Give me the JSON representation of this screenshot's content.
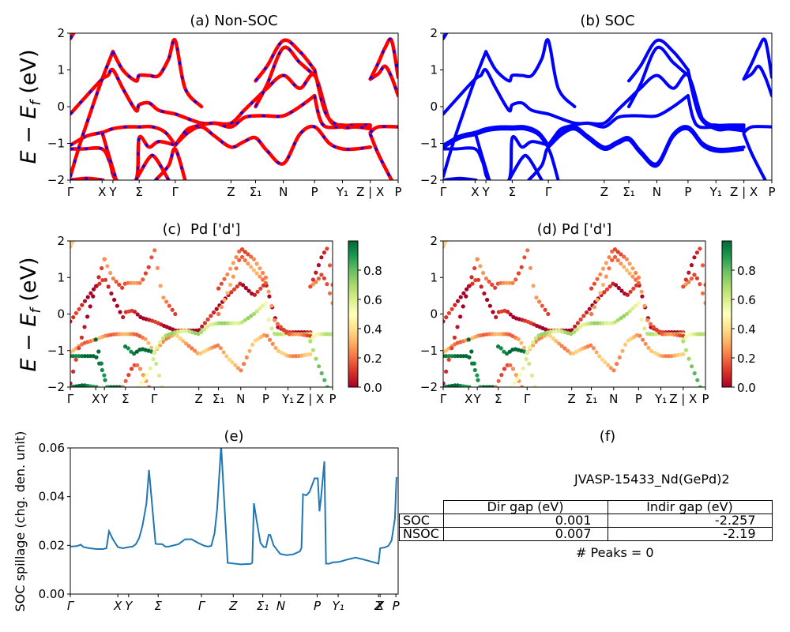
{
  "figure": {
    "material_label": "JVASP-15433_Nd(GePd)2",
    "peaks_text": "# Peaks = 0"
  },
  "colors": {
    "nonsoc_line": "#ff0000",
    "nonsoc_dash": "#0000ff",
    "soc_line": "#0000ff",
    "spillage_line": "#1f77b4",
    "colormap": "RdYlGn"
  },
  "chart_data": [
    {
      "id": "a",
      "type": "line",
      "title": "(a) Non-SOC",
      "ylabel": "E − E_f (eV)",
      "ylim": [
        -2,
        2
      ],
      "yticks": [
        "−2",
        "−1",
        "0",
        "1",
        "2"
      ],
      "ytick_values": [
        -2,
        -1,
        0,
        1,
        2
      ],
      "xticks": [
        "Γ",
        "X",
        "Y",
        "Σ",
        "Γ",
        "Z",
        "Σ₁",
        "N",
        "P",
        "Y₁",
        "Z | X",
        "P"
      ],
      "xtick_positions": [
        0,
        0.097,
        0.13,
        0.21,
        0.32,
        0.49,
        0.565,
        0.65,
        0.745,
        0.83,
        0.915,
        1.0
      ],
      "style": "red line overlaid with blue dashes",
      "bands": [
        {
          "x": [
            0,
            0.05,
            0.097,
            0.115,
            0.13,
            0.16,
            0.2,
            0.21,
            0.24,
            0.27,
            0.32,
            0.35,
            0.4,
            0.44,
            0.49,
            0.53,
            0.565,
            0.6,
            0.65,
            0.7,
            0.745,
            0.79,
            0.83,
            0.87,
            0.915
          ],
          "y": [
            -0.2,
            0.3,
            0.75,
            0.85,
            1.0,
            0.5,
            -0.1,
            0.05,
            0.1,
            -0.1,
            -0.2,
            -0.3,
            -0.45,
            -0.45,
            -0.45,
            -0.1,
            0.2,
            0.5,
            0.85,
            0.5,
            0.85,
            -0.35,
            -0.5,
            -0.5,
            -0.5
          ]
        },
        {
          "x": [
            0,
            0.05,
            0.097,
            0.13,
            0.17,
            0.21,
            0.25,
            0.29,
            0.32
          ],
          "y": [
            -1.05,
            -0.8,
            -0.7,
            -0.6,
            -0.55,
            -0.55,
            -0.55,
            -0.7,
            -1.05
          ]
        },
        {
          "x": [
            0.32,
            0.36,
            0.4,
            0.44,
            0.49,
            0.53,
            0.565,
            0.6,
            0.65,
            0.7,
            0.745,
            0.79,
            0.83,
            0.87,
            0.915
          ],
          "y": [
            -1.05,
            -0.7,
            -0.55,
            -0.8,
            -1.1,
            -0.95,
            -0.85,
            -1.2,
            -1.55,
            -0.75,
            -0.55,
            -1.0,
            -1.15,
            -1.15,
            -1.1
          ]
        },
        {
          "x": [
            0,
            0.04,
            0.097,
            0.12,
            0.14,
            0.2,
            0.21,
            0.24,
            0.27,
            0.32
          ],
          "y": [
            -1.15,
            -1.15,
            -1.15,
            -1.5,
            -2.0,
            -2.0,
            -0.85,
            -1.1,
            -0.95,
            -1.05
          ]
        },
        {
          "x": [
            0.32,
            0.34,
            0.36,
            0.4,
            0.44,
            0.49,
            0.53,
            0.565,
            0.6,
            0.65,
            0.7,
            0.745
          ],
          "y": [
            -1.05,
            -0.8,
            -0.6,
            -0.5,
            -0.45,
            -0.55,
            -0.3,
            -0.25,
            -0.25,
            -0.25,
            0.0,
            0.3
          ]
        },
        {
          "x": [
            0.745,
            0.76,
            0.78,
            0.83,
            0.87,
            0.915
          ],
          "y": [
            0.3,
            -0.3,
            -0.55,
            -0.55,
            -0.55,
            -0.55
          ]
        },
        {
          "x": [
            0,
            0.03,
            0.06,
            0.097,
            0.13
          ],
          "y": [
            -1.9,
            -1.0,
            -0.2,
            0.75,
            1.5
          ]
        },
        {
          "x": [
            0.13,
            0.16,
            0.2,
            0.21,
            0.24,
            0.27,
            0.3,
            0.32,
            0.35,
            0.4
          ],
          "y": [
            1.5,
            1.0,
            0.7,
            0.85,
            0.85,
            0.85,
            1.3,
            1.8,
            0.5,
            0.0
          ]
        },
        {
          "x": [
            0.097,
            0.12,
            0.14
          ],
          "y": [
            -0.7,
            -1.4,
            -2.0
          ]
        },
        {
          "x": [
            0.2,
            0.24,
            0.26,
            0.3
          ],
          "y": [
            -2.0,
            -1.4,
            -1.4,
            -2.0
          ]
        },
        {
          "x": [
            0.26,
            0.3,
            0.32,
            0.35
          ],
          "y": [
            -2.0,
            -1.6,
            -1.15,
            -2.0
          ]
        },
        {
          "x": [
            0.565,
            0.6,
            0.65,
            0.7,
            0.745
          ],
          "y": [
            0.7,
            1.1,
            1.8,
            1.5,
            1.0
          ]
        },
        {
          "x": [
            0.565,
            0.6,
            0.65,
            0.7,
            0.745
          ],
          "y": [
            0.0,
            0.6,
            1.6,
            1.2,
            0.85
          ]
        },
        {
          "x": [
            0.745,
            0.78,
            0.83,
            0.87,
            0.915
          ],
          "y": [
            1.0,
            -0.2,
            -0.55,
            -0.55,
            -0.6
          ]
        },
        {
          "x": [
            0.915,
            0.94,
            0.96,
            0.98,
            1.0
          ],
          "y": [
            0.75,
            0.9,
            1.1,
            0.8,
            0.3
          ]
        },
        {
          "x": [
            0.915,
            0.94,
            0.96,
            0.98,
            1.0
          ],
          "y": [
            0.75,
            1.2,
            1.6,
            1.8,
            0.8
          ]
        },
        {
          "x": [
            0.915,
            0.94,
            1.0
          ],
          "y": [
            -0.7,
            -0.55,
            -0.55
          ]
        },
        {
          "x": [
            0.915,
            0.94,
            0.98
          ],
          "y": [
            -0.75,
            -1.3,
            -2.0
          ]
        },
        {
          "x": [
            0,
            0.05,
            0.1
          ],
          "y": [
            -2.0,
            -1.95,
            -2.0
          ]
        },
        {
          "x": [
            0,
            0.01
          ],
          "y": [
            1.85,
            2.0
          ]
        }
      ]
    },
    {
      "id": "b",
      "type": "line",
      "title": "(b) SOC",
      "ylim": [
        -2,
        2
      ],
      "yticks": [
        "−2",
        "−1",
        "0",
        "1",
        "2"
      ],
      "ytick_values": [
        -2,
        -1,
        0,
        1,
        2
      ],
      "xticks": [
        "Γ",
        "X",
        "Y",
        "Σ",
        "Γ",
        "Z",
        "Σ₁",
        "N",
        "P",
        "Y₁",
        "Z | X",
        "P"
      ],
      "xtick_positions": [
        0,
        0.097,
        0.13,
        0.21,
        0.32,
        0.49,
        0.565,
        0.65,
        0.745,
        0.83,
        0.915,
        1.0
      ],
      "style": "solid blue lines (same band structure as panel a, split by SOC)"
    },
    {
      "id": "c",
      "type": "scatter",
      "title": "(c)  Pd ['d']",
      "ylabel": "E − E_f (eV)",
      "ylim": [
        -2,
        2
      ],
      "yticks": [
        "−2",
        "−1",
        "0",
        "1",
        "2"
      ],
      "ytick_values": [
        -2,
        -1,
        0,
        1,
        2
      ],
      "xticks": [
        "Γ",
        "X",
        "Y",
        "Σ",
        "Γ",
        "Z",
        "Σ₁",
        "N",
        "P",
        "Y₁",
        "Z | X",
        "P"
      ],
      "xtick_positions": [
        0,
        0.097,
        0.13,
        0.21,
        0.32,
        0.49,
        0.565,
        0.65,
        0.745,
        0.83,
        0.915,
        1.0
      ],
      "colorbar": {
        "min": 0.0,
        "max": 1.0,
        "ticks": [
          "0.0",
          "0.2",
          "0.4",
          "0.6",
          "0.8"
        ],
        "tick_values": [
          0,
          0.2,
          0.4,
          0.6,
          0.8
        ],
        "colormap": "RdYlGn"
      },
      "weight_by_band": [
        0.05,
        0.25,
        0.3,
        1.0,
        0.65,
        0.6,
        0.05,
        0.2,
        0.95,
        0.2,
        0.55,
        0.2,
        0.25,
        0.2,
        0.2,
        0.1,
        0.6,
        0.75,
        0.95,
        0.3
      ]
    },
    {
      "id": "d",
      "type": "scatter",
      "title": "(d) Pd ['d']",
      "ylim": [
        -2,
        2
      ],
      "yticks": [
        "−2",
        "−1",
        "0",
        "1",
        "2"
      ],
      "ytick_values": [
        -2,
        -1,
        0,
        1,
        2
      ],
      "xticks": [
        "Γ",
        "X",
        "Y",
        "Σ",
        "Γ",
        "Z",
        "Σ₁",
        "N",
        "P",
        "Y₁",
        "Z | X",
        "P"
      ],
      "xtick_positions": [
        0,
        0.097,
        0.13,
        0.21,
        0.32,
        0.49,
        0.565,
        0.65,
        0.745,
        0.83,
        0.915,
        1.0
      ],
      "colorbar": {
        "min": 0.0,
        "max": 1.0,
        "ticks": [
          "0.0",
          "0.2",
          "0.4",
          "0.6",
          "0.8"
        ],
        "tick_values": [
          0,
          0.2,
          0.4,
          0.6,
          0.8
        ],
        "colormap": "RdYlGn"
      }
    },
    {
      "id": "e",
      "type": "line",
      "title": "(e)",
      "ylabel": "SOC spillage (chg. den. unit)",
      "ylim": [
        0,
        0.06
      ],
      "yticks": [
        "0.00",
        "0.02",
        "0.04",
        "0.06"
      ],
      "ytick_values": [
        0,
        0.02,
        0.04,
        0.06
      ],
      "xticks": [
        "Γ",
        "X",
        "Y",
        "Σ",
        "Γ",
        "Z",
        "Σ₁",
        "N",
        "P",
        "Y₁",
        "Z",
        "X",
        "P"
      ],
      "xtick_positions": [
        0,
        0.145,
        0.178,
        0.268,
        0.4,
        0.497,
        0.587,
        0.642,
        0.753,
        0.817,
        0.94,
        0.945,
        0.993
      ],
      "series": [
        {
          "name": "spillage",
          "x": [
            0,
            0.02,
            0.032,
            0.04,
            0.06,
            0.08,
            0.1,
            0.11,
            0.118,
            0.13,
            0.145,
            0.16,
            0.178,
            0.19,
            0.2,
            0.21,
            0.22,
            0.232,
            0.24,
            0.26,
            0.265,
            0.272,
            0.28,
            0.29,
            0.3,
            0.33,
            0.35,
            0.37,
            0.39,
            0.41,
            0.42,
            0.43,
            0.44,
            0.448,
            0.455,
            0.46,
            0.48,
            0.52,
            0.55,
            0.555,
            0.56,
            0.57,
            0.58,
            0.59,
            0.597,
            0.605,
            0.61,
            0.62,
            0.64,
            0.66,
            0.68,
            0.7,
            0.705,
            0.71,
            0.72,
            0.73,
            0.745,
            0.755,
            0.76,
            0.765,
            0.775,
            0.78,
            0.79,
            0.8,
            0.82,
            0.84,
            0.87,
            0.9,
            0.94,
            0.945,
            0.96,
            0.97,
            0.98,
            0.99,
            0.995
          ],
          "y": [
            0.0195,
            0.0197,
            0.0203,
            0.0193,
            0.0188,
            0.0185,
            0.0185,
            0.0188,
            0.0258,
            0.0225,
            0.0193,
            0.0188,
            0.0193,
            0.0195,
            0.0205,
            0.023,
            0.028,
            0.037,
            0.051,
            0.0207,
            0.0205,
            0.0205,
            0.0205,
            0.0195,
            0.0195,
            0.0205,
            0.0225,
            0.0225,
            0.021,
            0.0198,
            0.0195,
            0.0198,
            0.025,
            0.035,
            0.05,
            0.061,
            0.0128,
            0.0122,
            0.0124,
            0.0128,
            0.0373,
            0.029,
            0.021,
            0.0193,
            0.0193,
            0.0243,
            0.0243,
            0.02,
            0.0165,
            0.016,
            0.0163,
            0.0175,
            0.0188,
            0.041,
            0.0405,
            0.042,
            0.0475,
            0.0475,
            0.034,
            0.04,
            0.0545,
            0.0125,
            0.0125,
            0.013,
            0.0132,
            0.014,
            0.015,
            0.014,
            0.0125,
            0.0188,
            0.0192,
            0.0198,
            0.022,
            0.031,
            0.048
          ]
        }
      ]
    },
    {
      "id": "f",
      "type": "table",
      "title": "(f)",
      "subtitle": "JVASP-15433_Nd(GePd)2",
      "columns": [
        "Dir gap (eV)",
        "Indir gap (eV)"
      ],
      "rows": [
        {
          "label": "SOC",
          "values": [
            "0.001",
            "-2.257"
          ]
        },
        {
          "label": "NSOC",
          "values": [
            "0.007",
            "-2.19"
          ]
        }
      ],
      "footer": "# Peaks = 0"
    }
  ]
}
